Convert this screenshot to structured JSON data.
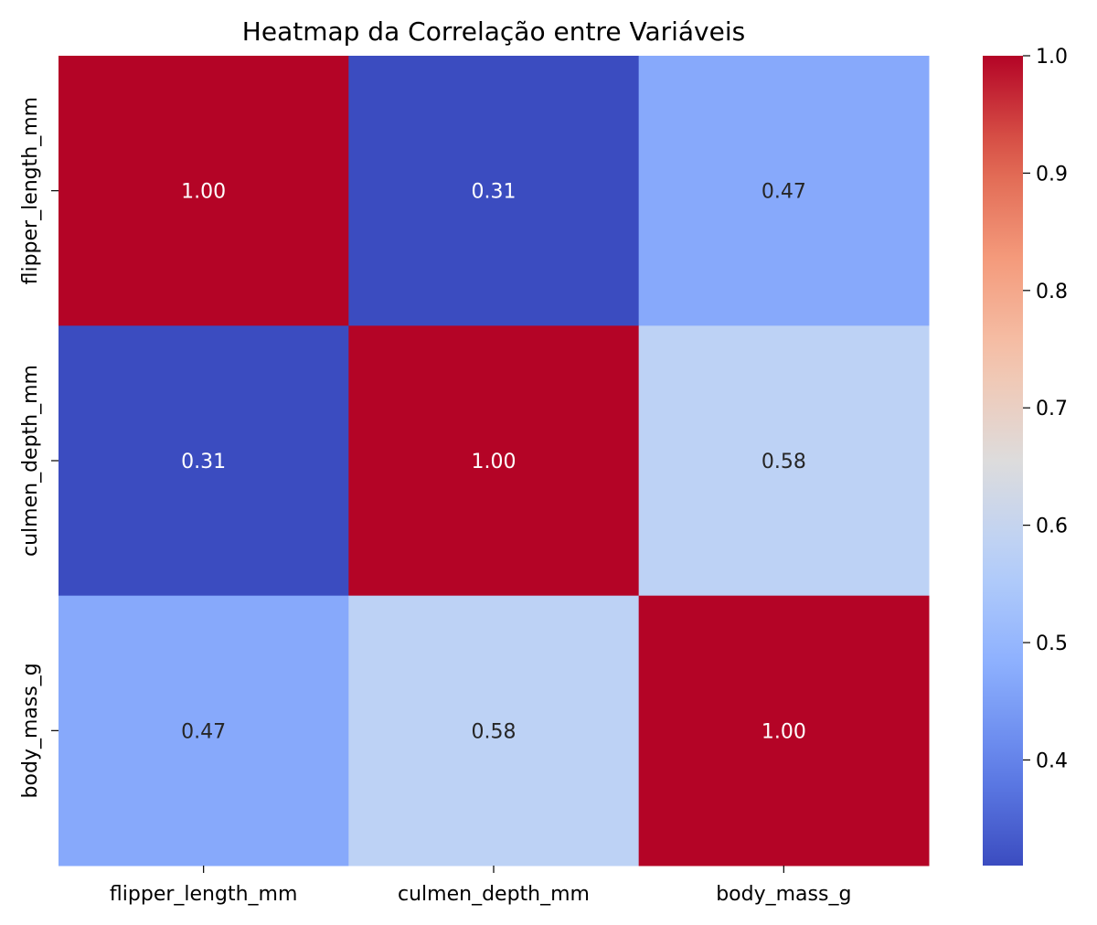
{
  "chart_data": {
    "type": "heatmap",
    "title": "Heatmap da Correlação entre Variáveis",
    "xlabel": "",
    "ylabel": "",
    "row_labels": [
      "flipper_length_mm",
      "culmen_depth_mm",
      "body_mass_g"
    ],
    "col_labels": [
      "flipper_length_mm",
      "culmen_depth_mm",
      "body_mass_g"
    ],
    "values": [
      [
        1.0,
        0.31,
        0.47
      ],
      [
        0.31,
        1.0,
        0.58
      ],
      [
        0.47,
        0.58,
        1.0
      ]
    ],
    "value_labels": [
      [
        "1.00",
        "0.31",
        "0.47"
      ],
      [
        "0.31",
        "1.00",
        "0.58"
      ],
      [
        "0.47",
        "0.58",
        "1.00"
      ]
    ],
    "colormap": "coolwarm",
    "vmin": 0.31,
    "vmax": 1.0,
    "colorbar": {
      "ticks": [
        0.4,
        0.5,
        0.6,
        0.7,
        0.8,
        0.9,
        1.0
      ],
      "tick_labels": [
        "0.4",
        "0.5",
        "0.6",
        "0.7",
        "0.8",
        "0.9",
        "1.0"
      ],
      "placement": "right"
    },
    "colors": {
      "low": "#3b4cc0",
      "mid": "#dddddd",
      "high": "#b40426",
      "text_light": "#ffffff",
      "text_dark": "#262626"
    }
  }
}
